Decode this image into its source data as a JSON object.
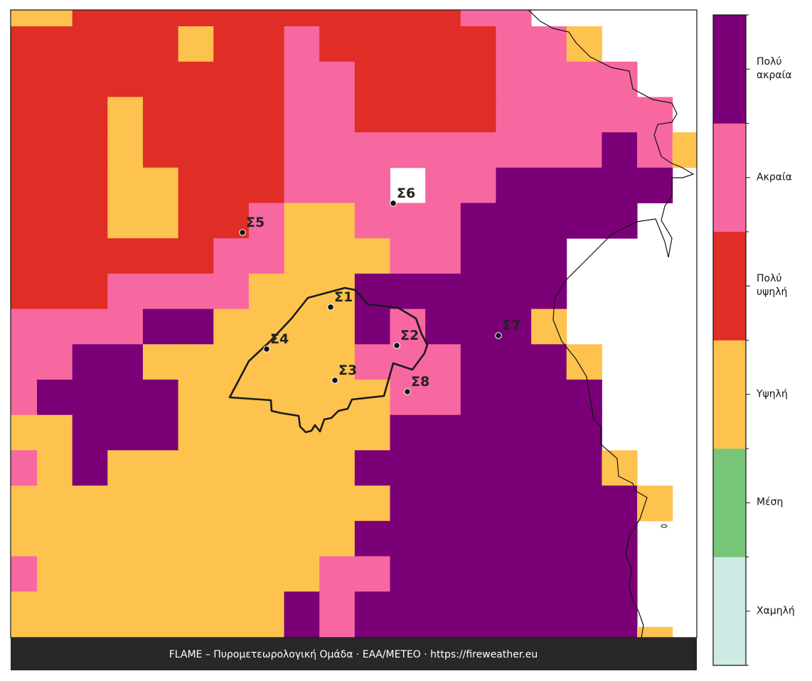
{
  "map": {
    "legend": [
      {
        "label": "Χαμηλή",
        "color": "#cdebe4"
      },
      {
        "label": "Μέση",
        "color": "#78c679"
      },
      {
        "label": "Υψηλή",
        "color": "#fec24f"
      },
      {
        "label": "Πολύ υψηλή",
        "color": "#e02d26"
      },
      {
        "label": "Ακραία",
        "color": "#f768a1"
      },
      {
        "label": "Πολύ ακραία",
        "color": "#7b0077"
      }
    ],
    "grid": [
      [
        2,
        2,
        3,
        3,
        3,
        3,
        3,
        3,
        3,
        3,
        3,
        3,
        3,
        4,
        4,
        null,
        null,
        null,
        null,
        null
      ],
      [
        3,
        3,
        3,
        3,
        3,
        2,
        3,
        3,
        4,
        3,
        3,
        3,
        3,
        3,
        4,
        4,
        2,
        null,
        null,
        null
      ],
      [
        3,
        3,
        3,
        3,
        3,
        3,
        3,
        3,
        4,
        4,
        3,
        3,
        3,
        3,
        4,
        4,
        4,
        4,
        null,
        null
      ],
      [
        3,
        3,
        3,
        2,
        3,
        3,
        3,
        3,
        4,
        4,
        3,
        3,
        3,
        3,
        4,
        4,
        4,
        4,
        4,
        null
      ],
      [
        3,
        3,
        3,
        2,
        3,
        3,
        3,
        3,
        4,
        4,
        4,
        4,
        4,
        4,
        4,
        4,
        4,
        5,
        4,
        2
      ],
      [
        3,
        3,
        3,
        2,
        2,
        3,
        3,
        3,
        4,
        4,
        4,
        null,
        4,
        4,
        5,
        5,
        5,
        5,
        5,
        null
      ],
      [
        3,
        3,
        3,
        2,
        2,
        3,
        3,
        4,
        2,
        2,
        4,
        4,
        4,
        5,
        5,
        5,
        5,
        5,
        null,
        null
      ],
      [
        3,
        3,
        3,
        3,
        3,
        3,
        4,
        4,
        2,
        2,
        2,
        4,
        4,
        5,
        5,
        5,
        null,
        null,
        null,
        null
      ],
      [
        3,
        3,
        3,
        4,
        4,
        4,
        4,
        2,
        2,
        2,
        5,
        5,
        5,
        5,
        5,
        5,
        null,
        null,
        null,
        null
      ],
      [
        4,
        4,
        4,
        4,
        5,
        5,
        2,
        2,
        2,
        2,
        5,
        4,
        5,
        5,
        5,
        2,
        null,
        null,
        null,
        null
      ],
      [
        4,
        4,
        5,
        5,
        2,
        2,
        2,
        2,
        2,
        2,
        4,
        4,
        4,
        5,
        5,
        5,
        2,
        null,
        null,
        null
      ],
      [
        4,
        5,
        5,
        5,
        5,
        2,
        2,
        2,
        2,
        2,
        2,
        4,
        4,
        5,
        5,
        5,
        5,
        null,
        null,
        null
      ],
      [
        2,
        2,
        5,
        5,
        5,
        2,
        2,
        2,
        2,
        2,
        2,
        5,
        5,
        5,
        5,
        5,
        5,
        null,
        null,
        null
      ],
      [
        4,
        2,
        5,
        2,
        2,
        2,
        2,
        2,
        2,
        2,
        5,
        5,
        5,
        5,
        5,
        5,
        5,
        2,
        null,
        null
      ],
      [
        2,
        2,
        2,
        2,
        2,
        2,
        2,
        2,
        2,
        2,
        2,
        5,
        5,
        5,
        5,
        5,
        5,
        5,
        2,
        null
      ],
      [
        2,
        2,
        2,
        2,
        2,
        2,
        2,
        2,
        2,
        2,
        5,
        5,
        5,
        5,
        5,
        5,
        5,
        5,
        null,
        null
      ],
      [
        4,
        2,
        2,
        2,
        2,
        2,
        2,
        2,
        2,
        4,
        4,
        5,
        5,
        5,
        5,
        5,
        5,
        5,
        null,
        null
      ],
      [
        2,
        2,
        2,
        2,
        2,
        2,
        2,
        2,
        5,
        4,
        5,
        5,
        5,
        5,
        5,
        5,
        5,
        5,
        null,
        null
      ],
      [
        2,
        2,
        2,
        2,
        2,
        2,
        2,
        2,
        5,
        4,
        5,
        5,
        5,
        5,
        5,
        5,
        5,
        5,
        2,
        null
      ]
    ],
    "stations": [
      "Σ1",
      "Σ2",
      "Σ3",
      "Σ4",
      "Σ5",
      "Σ6",
      "Σ7",
      "Σ8"
    ]
  },
  "footer": "FLAME – Πυρομετεωρολογική Ομάδα · ΕΑΑ/METEO · https://fireweather.eu"
}
